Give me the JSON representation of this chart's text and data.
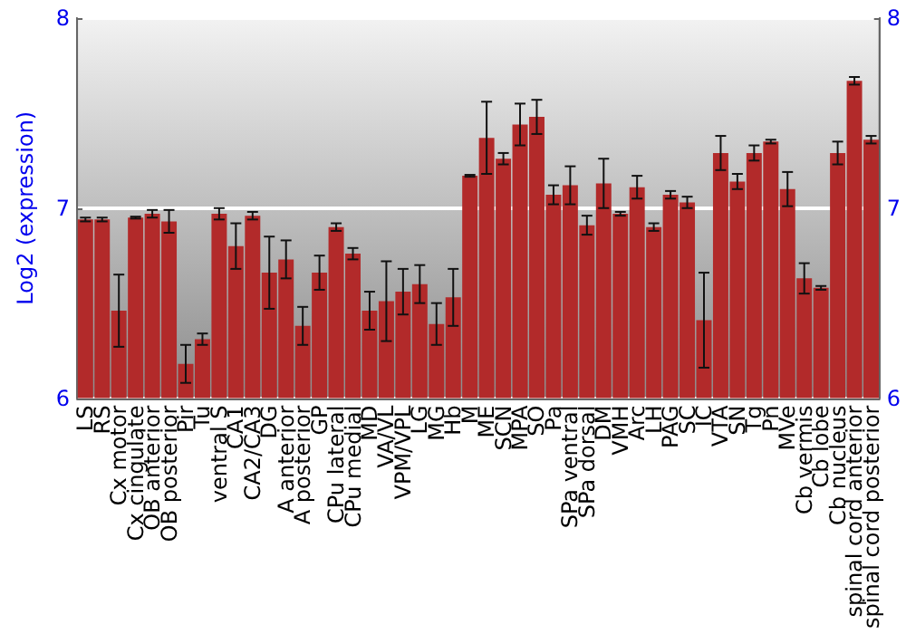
{
  "chart_data": {
    "type": "bar",
    "ylabel": "Log2 (expression)",
    "categories": [
      "LS",
      "RS",
      "Cx motor",
      "Cx cingulate",
      "OB anterior",
      "OB posterior",
      "Pir",
      "Tu",
      "ventral S",
      "CA1",
      "CA2/CA3",
      "DG",
      "A anterior",
      "A posterior",
      "GP",
      "CPu lateral",
      "CPu medial",
      "MD",
      "VA/VL",
      "VPM/VPL",
      "LG",
      "MG",
      "Hb",
      "M",
      "ME",
      "SCN",
      "MPA",
      "SO",
      "Pa",
      "SPa ventral",
      "SPa dorsal",
      "DM",
      "VMH",
      "Arc",
      "LH",
      "PAG",
      "SC",
      "IC",
      "VTA",
      "SN",
      "Tg",
      "Pn",
      "MVe",
      "Cb vermis",
      "Cb lobe",
      "Cb nucleus",
      "spinal cord anterior",
      "spinal cord posterior"
    ],
    "values": [
      6.94,
      6.94,
      6.46,
      6.95,
      6.97,
      6.93,
      6.18,
      6.31,
      6.97,
      6.8,
      6.96,
      6.66,
      6.73,
      6.38,
      6.66,
      6.9,
      6.76,
      6.46,
      6.51,
      6.56,
      6.6,
      6.39,
      6.53,
      7.17,
      7.37,
      7.26,
      7.44,
      7.48,
      7.07,
      7.12,
      6.91,
      7.13,
      6.97,
      7.11,
      6.9,
      7.07,
      7.03,
      6.41,
      7.29,
      7.14,
      7.29,
      7.35,
      7.1,
      6.63,
      6.58,
      7.29,
      7.67,
      7.36
    ],
    "errors": [
      0.01,
      0.01,
      0.19,
      0.005,
      0.02,
      0.06,
      0.1,
      0.03,
      0.03,
      0.12,
      0.02,
      0.19,
      0.1,
      0.1,
      0.09,
      0.02,
      0.03,
      0.1,
      0.21,
      0.12,
      0.1,
      0.11,
      0.15,
      0.005,
      0.19,
      0.03,
      0.11,
      0.09,
      0.05,
      0.1,
      0.05,
      0.13,
      0.01,
      0.06,
      0.02,
      0.02,
      0.03,
      0.25,
      0.09,
      0.04,
      0.04,
      0.01,
      0.09,
      0.08,
      0.01,
      0.06,
      0.02,
      0.02
    ],
    "color": "#b22a2a",
    "ylim": [
      6,
      8
    ],
    "yticks": [
      6,
      7,
      8
    ],
    "y2lim": [
      6,
      8
    ],
    "y2ticks": [
      6,
      7,
      8
    ],
    "grid": "y"
  }
}
